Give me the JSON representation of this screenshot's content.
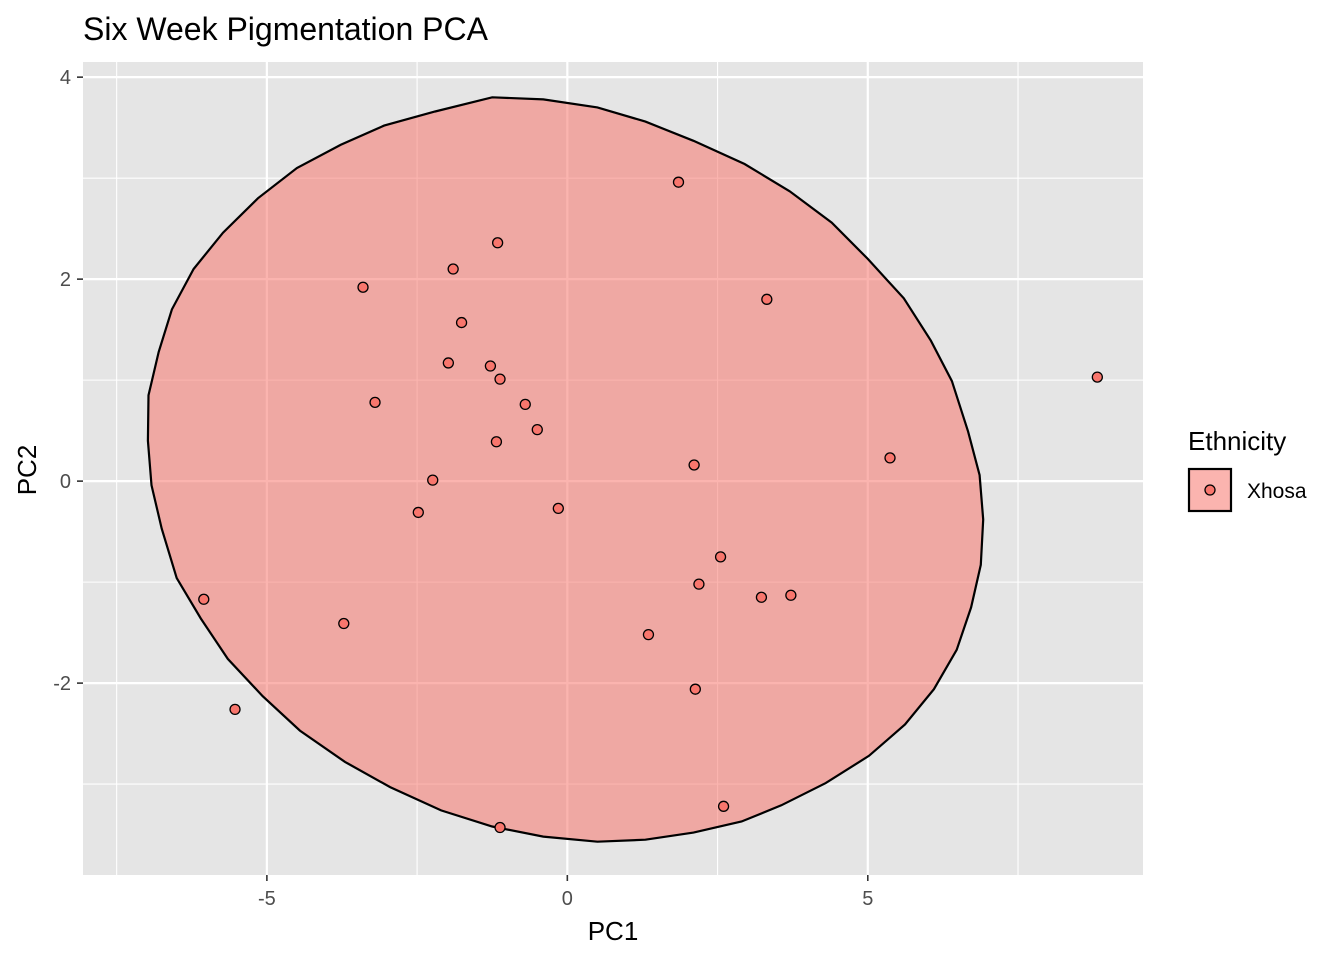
{
  "chart_data": {
    "type": "scatter",
    "title": "Six Week Pigmentation PCA",
    "xlabel": "PC1",
    "ylabel": "PC2",
    "xlim": [
      -8.06,
      9.58
    ],
    "ylim": [
      -3.9,
      4.15
    ],
    "x_ticks": [
      -5,
      0,
      5
    ],
    "x_tick_labels": [
      "-5",
      "0",
      "5"
    ],
    "y_ticks": [
      -2,
      0,
      2,
      4
    ],
    "y_tick_labels": [
      "-2",
      "0",
      "2",
      "4"
    ],
    "grid": true,
    "legend": {
      "title": "Ethnicity",
      "placement": "right",
      "entries": [
        "Xhosa"
      ]
    },
    "colors": {
      "panel": "#e5e5e5",
      "grid": "#ffffff",
      "point_fill": "#f8766d",
      "point_stroke": "#000000",
      "ellipse_fill": "#f8766d",
      "ellipse_stroke": "#000000"
    },
    "series": [
      {
        "name": "Xhosa",
        "points": [
          {
            "x": 1.85,
            "y": 2.96
          },
          {
            "x": -1.16,
            "y": 2.36
          },
          {
            "x": -1.9,
            "y": 2.1
          },
          {
            "x": -3.4,
            "y": 1.92
          },
          {
            "x": 3.32,
            "y": 1.8
          },
          {
            "x": -1.76,
            "y": 1.57
          },
          {
            "x": -1.98,
            "y": 1.17
          },
          {
            "x": -1.28,
            "y": 1.14
          },
          {
            "x": -1.12,
            "y": 1.01
          },
          {
            "x": 8.82,
            "y": 1.03
          },
          {
            "x": -3.2,
            "y": 0.78
          },
          {
            "x": -0.7,
            "y": 0.76
          },
          {
            "x": -0.5,
            "y": 0.51
          },
          {
            "x": -1.18,
            "y": 0.39
          },
          {
            "x": 5.37,
            "y": 0.23
          },
          {
            "x": 2.11,
            "y": 0.16
          },
          {
            "x": -2.24,
            "y": 0.01
          },
          {
            "x": -2.48,
            "y": -0.31
          },
          {
            "x": -0.15,
            "y": -0.27
          },
          {
            "x": 2.55,
            "y": -0.75
          },
          {
            "x": 2.19,
            "y": -1.02
          },
          {
            "x": 3.23,
            "y": -1.15
          },
          {
            "x": 3.72,
            "y": -1.13
          },
          {
            "x": -6.05,
            "y": -1.17
          },
          {
            "x": -3.72,
            "y": -1.41
          },
          {
            "x": 1.35,
            "y": -1.52
          },
          {
            "x": 2.13,
            "y": -2.06
          },
          {
            "x": -5.53,
            "y": -2.26
          },
          {
            "x": 2.6,
            "y": -3.22
          },
          {
            "x": -1.12,
            "y": -3.43
          }
        ]
      }
    ],
    "ellipse": {
      "series": "Xhosa",
      "points": [
        [
          -1.25,
          3.8
        ],
        [
          -0.4,
          3.78
        ],
        [
          0.5,
          3.7
        ],
        [
          1.3,
          3.56
        ],
        [
          2.1,
          3.37
        ],
        [
          2.95,
          3.14
        ],
        [
          3.7,
          2.87
        ],
        [
          4.4,
          2.56
        ],
        [
          5.0,
          2.2
        ],
        [
          5.6,
          1.81
        ],
        [
          6.05,
          1.39
        ],
        [
          6.4,
          0.99
        ],
        [
          6.67,
          0.49
        ],
        [
          6.86,
          0.06
        ],
        [
          6.92,
          -0.38
        ],
        [
          6.88,
          -0.83
        ],
        [
          6.72,
          -1.25
        ],
        [
          6.48,
          -1.67
        ],
        [
          6.1,
          -2.06
        ],
        [
          5.62,
          -2.41
        ],
        [
          5.02,
          -2.72
        ],
        [
          4.3,
          -2.99
        ],
        [
          3.56,
          -3.21
        ],
        [
          2.9,
          -3.37
        ],
        [
          2.1,
          -3.48
        ],
        [
          1.3,
          -3.55
        ],
        [
          0.5,
          -3.57
        ],
        [
          -0.4,
          -3.52
        ],
        [
          -1.25,
          -3.42
        ],
        [
          -2.1,
          -3.26
        ],
        [
          -2.95,
          -3.03
        ],
        [
          -3.7,
          -2.78
        ],
        [
          -4.45,
          -2.47
        ],
        [
          -5.07,
          -2.13
        ],
        [
          -5.65,
          -1.76
        ],
        [
          -6.1,
          -1.36
        ],
        [
          -6.5,
          -0.96
        ],
        [
          -6.75,
          -0.47
        ],
        [
          -6.92,
          -0.04
        ],
        [
          -6.98,
          0.4
        ],
        [
          -6.97,
          0.85
        ],
        [
          -6.8,
          1.28
        ],
        [
          -6.58,
          1.7
        ],
        [
          -6.22,
          2.1
        ],
        [
          -5.73,
          2.46
        ],
        [
          -5.15,
          2.8
        ],
        [
          -4.5,
          3.1
        ],
        [
          -3.77,
          3.33
        ],
        [
          -3.05,
          3.52
        ],
        [
          -2.2,
          3.66
        ],
        [
          -1.25,
          3.8
        ]
      ]
    }
  }
}
